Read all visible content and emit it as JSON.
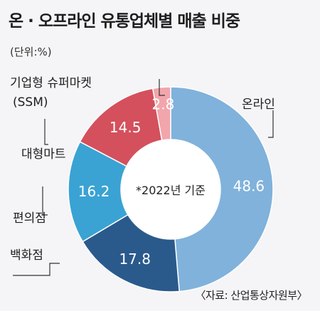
{
  "title": "온 · 오프라인 유통업체별 매출 비중",
  "unit": "(단위:%)",
  "source": "〈자료: 산업통상자원부〉",
  "center_note": "*2022년 기준",
  "colors": {
    "online": "#80b2db",
    "department": "#2a5a8c",
    "convenience": "#3aa3d3",
    "mart": "#d4505d",
    "ssm": "#f2a5ac"
  },
  "chart_data": {
    "type": "pie",
    "donut": true,
    "title": "온 · 오프라인 유통업체별 매출 비중",
    "unit": "%",
    "note": "*2022년 기준",
    "categories": [
      "온라인",
      "백화점",
      "편의점",
      "대형마트",
      "기업형 슈퍼마켓 (SSM)"
    ],
    "values": [
      48.6,
      17.8,
      16.2,
      14.5,
      2.8
    ],
    "labels": [
      "48.6",
      "17.8",
      "16.2",
      "14.5",
      "2.8"
    ],
    "legend_lines": [
      [
        "온라인"
      ],
      [
        "백화점"
      ],
      [
        "편의점"
      ],
      [
        "대형마트"
      ],
      [
        "기업형 슈퍼마켓",
        "(SSM)"
      ]
    ]
  }
}
